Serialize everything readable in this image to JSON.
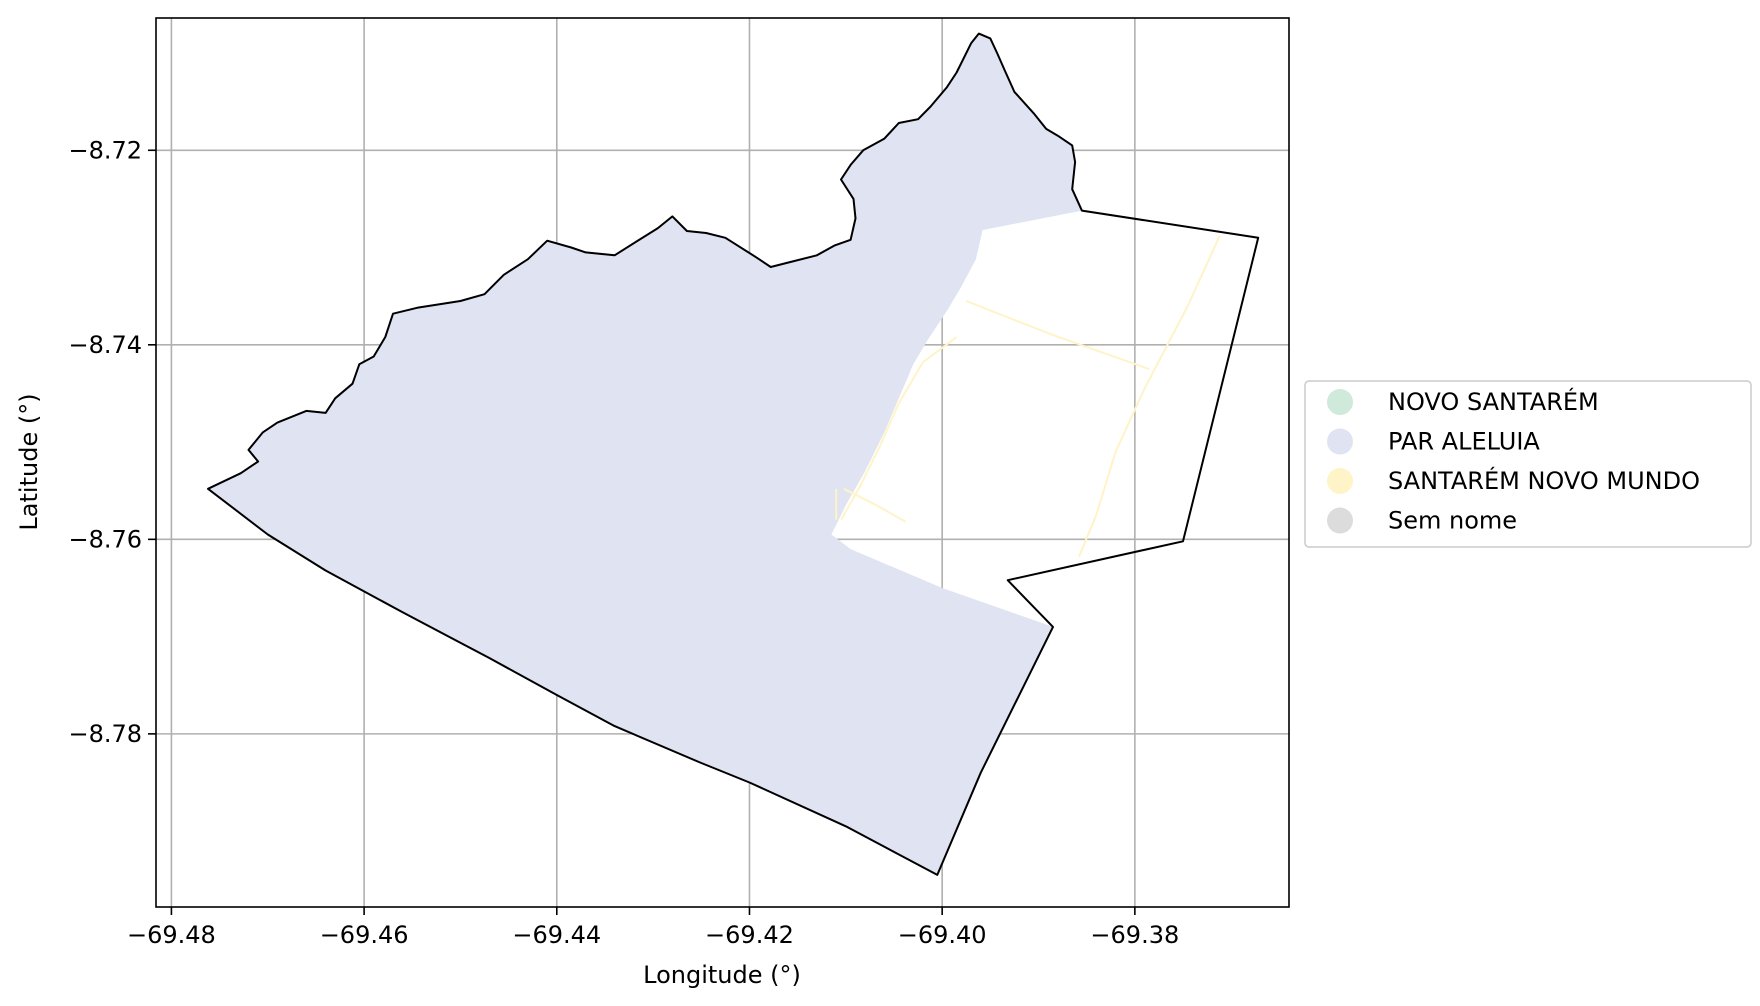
{
  "chart_data": {
    "type": "map",
    "xlabel": "Longitude (°)",
    "ylabel": "Latitude (°)",
    "xlim": [
      -69.4816,
      -69.364
    ],
    "ylim": [
      -8.7978,
      -8.7064
    ],
    "grid": true,
    "x_ticks": [
      {
        "value": -69.48,
        "label": "−69.48"
      },
      {
        "value": -69.46,
        "label": "−69.46"
      },
      {
        "value": -69.44,
        "label": "−69.44"
      },
      {
        "value": -69.42,
        "label": "−69.42"
      },
      {
        "value": -69.4,
        "label": "−69.40"
      },
      {
        "value": -69.38,
        "label": "−69.38"
      }
    ],
    "y_ticks": [
      {
        "value": -8.72,
        "label": "−8.72"
      },
      {
        "value": -8.74,
        "label": "−8.74"
      },
      {
        "value": -8.76,
        "label": "−8.76"
      },
      {
        "value": -8.78,
        "label": "−8.78"
      }
    ],
    "legend_placement": "right",
    "legend": [
      {
        "label": "NOVO SANTARÉM",
        "color": "#cfe9da"
      },
      {
        "label": "PAR ALELUIA",
        "color": "#dfe3f2"
      },
      {
        "label": "SANTARÉM NOVO MUNDO",
        "color": "#fff3c8"
      },
      {
        "label": "Sem nome",
        "color": "#dcdcdc"
      }
    ],
    "outline_color": "#000000",
    "outline": [
      [
        -69.4762,
        -8.7548
      ],
      [
        -69.4728,
        -8.7532
      ],
      [
        -69.471,
        -8.752
      ],
      [
        -69.472,
        -8.7508
      ],
      [
        -69.4705,
        -8.749
      ],
      [
        -69.469,
        -8.748
      ],
      [
        -69.466,
        -8.7468
      ],
      [
        -69.464,
        -8.747
      ],
      [
        -69.463,
        -8.7455
      ],
      [
        -69.4612,
        -8.744
      ],
      [
        -69.4605,
        -8.742
      ],
      [
        -69.459,
        -8.7412
      ],
      [
        -69.4578,
        -8.7392
      ],
      [
        -69.457,
        -8.7368
      ],
      [
        -69.4545,
        -8.7362
      ],
      [
        -69.452,
        -8.7358
      ],
      [
        -69.45,
        -8.7355
      ],
      [
        -69.4475,
        -8.7348
      ],
      [
        -69.4455,
        -8.7328
      ],
      [
        -69.443,
        -8.7312
      ],
      [
        -69.441,
        -8.7293
      ],
      [
        -69.4385,
        -8.73
      ],
      [
        -69.437,
        -8.7305
      ],
      [
        -69.434,
        -8.7308
      ],
      [
        -69.4295,
        -8.728
      ],
      [
        -69.428,
        -8.7268
      ],
      [
        -69.4265,
        -8.7283
      ],
      [
        -69.4245,
        -8.7285
      ],
      [
        -69.4225,
        -8.729
      ],
      [
        -69.4193,
        -8.731
      ],
      [
        -69.4178,
        -8.732
      ],
      [
        -69.4158,
        -8.7315
      ],
      [
        -69.413,
        -8.7308
      ],
      [
        -69.4112,
        -8.7298
      ],
      [
        -69.4095,
        -8.7292
      ],
      [
        -69.409,
        -8.727
      ],
      [
        -69.4092,
        -8.725
      ],
      [
        -69.4105,
        -8.723
      ],
      [
        -69.4095,
        -8.7215
      ],
      [
        -69.4082,
        -8.72
      ],
      [
        -69.406,
        -8.7188
      ],
      [
        -69.4045,
        -8.7172
      ],
      [
        -69.4025,
        -8.7168
      ],
      [
        -69.4012,
        -8.7155
      ],
      [
        -69.3995,
        -8.7135
      ],
      [
        -69.3985,
        -8.712
      ],
      [
        -69.397,
        -8.709
      ],
      [
        -69.3962,
        -8.708
      ],
      [
        -69.395,
        -8.7085
      ],
      [
        -69.3943,
        -8.71
      ],
      [
        -69.3935,
        -8.7118
      ],
      [
        -69.3925,
        -8.714
      ],
      [
        -69.3905,
        -8.7162
      ],
      [
        -69.3892,
        -8.7178
      ],
      [
        -69.388,
        -8.7185
      ],
      [
        -69.3865,
        -8.7195
      ],
      [
        -69.3862,
        -8.7212
      ],
      [
        -69.3865,
        -8.724
      ],
      [
        -69.3855,
        -8.7262
      ],
      [
        -69.3672,
        -8.729
      ],
      [
        -69.375,
        -8.7602
      ],
      [
        -69.3932,
        -8.7642
      ],
      [
        -69.3885,
        -8.769
      ],
      [
        -69.396,
        -8.784
      ],
      [
        -69.4005,
        -8.7945
      ],
      [
        -69.41,
        -8.7895
      ],
      [
        -69.42,
        -8.785
      ],
      [
        -69.425,
        -8.783
      ],
      [
        -69.434,
        -8.7792
      ],
      [
        -69.44,
        -8.776
      ],
      [
        -69.447,
        -8.7722
      ],
      [
        -69.456,
        -8.7675
      ],
      [
        -69.464,
        -8.7632
      ],
      [
        -69.47,
        -8.7595
      ],
      [
        -69.4762,
        -8.7548
      ]
    ],
    "regions": [
      {
        "name": "PAR ALELUIA",
        "color": "#dfe3f2",
        "polygon": [
          [
            -69.4762,
            -8.7548
          ],
          [
            -69.4728,
            -8.7532
          ],
          [
            -69.471,
            -8.752
          ],
          [
            -69.472,
            -8.7508
          ],
          [
            -69.4705,
            -8.749
          ],
          [
            -69.469,
            -8.748
          ],
          [
            -69.466,
            -8.7468
          ],
          [
            -69.464,
            -8.747
          ],
          [
            -69.463,
            -8.7455
          ],
          [
            -69.4612,
            -8.744
          ],
          [
            -69.4605,
            -8.742
          ],
          [
            -69.459,
            -8.7412
          ],
          [
            -69.4578,
            -8.7392
          ],
          [
            -69.457,
            -8.7368
          ],
          [
            -69.4545,
            -8.7362
          ],
          [
            -69.452,
            -8.7358
          ],
          [
            -69.45,
            -8.7355
          ],
          [
            -69.4475,
            -8.7348
          ],
          [
            -69.4455,
            -8.7328
          ],
          [
            -69.443,
            -8.7312
          ],
          [
            -69.441,
            -8.7293
          ],
          [
            -69.4385,
            -8.73
          ],
          [
            -69.437,
            -8.7305
          ],
          [
            -69.434,
            -8.7308
          ],
          [
            -69.4295,
            -8.728
          ],
          [
            -69.428,
            -8.7268
          ],
          [
            -69.4265,
            -8.7283
          ],
          [
            -69.4245,
            -8.7285
          ],
          [
            -69.4225,
            -8.729
          ],
          [
            -69.4193,
            -8.731
          ],
          [
            -69.4178,
            -8.732
          ],
          [
            -69.4158,
            -8.7315
          ],
          [
            -69.413,
            -8.7308
          ],
          [
            -69.4112,
            -8.7298
          ],
          [
            -69.4095,
            -8.7292
          ],
          [
            -69.409,
            -8.727
          ],
          [
            -69.4092,
            -8.725
          ],
          [
            -69.4105,
            -8.723
          ],
          [
            -69.4095,
            -8.7215
          ],
          [
            -69.4082,
            -8.72
          ],
          [
            -69.406,
            -8.7188
          ],
          [
            -69.4045,
            -8.7172
          ],
          [
            -69.4025,
            -8.7168
          ],
          [
            -69.4012,
            -8.7155
          ],
          [
            -69.3995,
            -8.7135
          ],
          [
            -69.3985,
            -8.712
          ],
          [
            -69.397,
            -8.709
          ],
          [
            -69.3962,
            -8.708
          ],
          [
            -69.395,
            -8.7085
          ],
          [
            -69.3943,
            -8.71
          ],
          [
            -69.3935,
            -8.7118
          ],
          [
            -69.3925,
            -8.714
          ],
          [
            -69.3905,
            -8.7162
          ],
          [
            -69.3892,
            -8.7178
          ],
          [
            -69.388,
            -8.7185
          ],
          [
            -69.3865,
            -8.7195
          ],
          [
            -69.3862,
            -8.7212
          ],
          [
            -69.3865,
            -8.724
          ],
          [
            -69.3855,
            -8.7262
          ],
          [
            -69.3958,
            -8.7282
          ],
          [
            -69.3965,
            -8.7312
          ],
          [
            -69.398,
            -8.734
          ],
          [
            -69.3995,
            -8.7365
          ],
          [
            -69.4015,
            -8.7395
          ],
          [
            -69.403,
            -8.742
          ],
          [
            -69.4045,
            -8.7455
          ],
          [
            -69.406,
            -8.749
          ],
          [
            -69.408,
            -8.753
          ],
          [
            -69.41,
            -8.7565
          ],
          [
            -69.4115,
            -8.7595
          ],
          [
            -69.4095,
            -8.761
          ],
          [
            -69.4,
            -8.765
          ],
          [
            -69.3885,
            -8.769
          ],
          [
            -69.396,
            -8.784
          ],
          [
            -69.4005,
            -8.7945
          ],
          [
            -69.41,
            -8.7895
          ],
          [
            -69.42,
            -8.785
          ],
          [
            -69.425,
            -8.783
          ],
          [
            -69.434,
            -8.7792
          ],
          [
            -69.44,
            -8.776
          ],
          [
            -69.447,
            -8.7722
          ],
          [
            -69.456,
            -8.7675
          ],
          [
            -69.464,
            -8.7632
          ],
          [
            -69.47,
            -8.7595
          ],
          [
            -69.4762,
            -8.7548
          ]
        ]
      }
    ],
    "lines": [
      {
        "name": "SANTARÉM NOVO MUNDO",
        "color": "#fff3c8",
        "points": [
          [
            -69.3712,
            -8.7288
          ],
          [
            -69.3745,
            -8.736
          ],
          [
            -69.379,
            -8.7445
          ],
          [
            -69.382,
            -8.751
          ],
          [
            -69.384,
            -8.7575
          ],
          [
            -69.3858,
            -8.7618
          ]
        ]
      },
      {
        "name": "SANTARÉM NOVO MUNDO",
        "color": "#fff3c8",
        "points": [
          [
            -69.3975,
            -8.7355
          ],
          [
            -69.3885,
            -8.739
          ],
          [
            -69.3785,
            -8.7425
          ]
        ]
      },
      {
        "name": "SANTARÉM NOVO MUNDO",
        "color": "#fff3c8",
        "points": [
          [
            -69.3985,
            -8.7392
          ],
          [
            -69.402,
            -8.7418
          ],
          [
            -69.4045,
            -8.746
          ],
          [
            -69.4065,
            -8.7505
          ],
          [
            -69.4085,
            -8.7545
          ],
          [
            -69.4105,
            -8.758
          ]
        ]
      },
      {
        "name": "SANTARÉM NOVO MUNDO",
        "color": "#fff3c8",
        "points": [
          [
            -69.4102,
            -8.7548
          ],
          [
            -69.4068,
            -8.7565
          ],
          [
            -69.4038,
            -8.7582
          ]
        ]
      },
      {
        "name": "SANTARÉM NOVO MUNDO",
        "color": "#fff3c8",
        "points": [
          [
            -69.411,
            -8.7548
          ],
          [
            -69.411,
            -8.758
          ]
        ]
      }
    ]
  }
}
